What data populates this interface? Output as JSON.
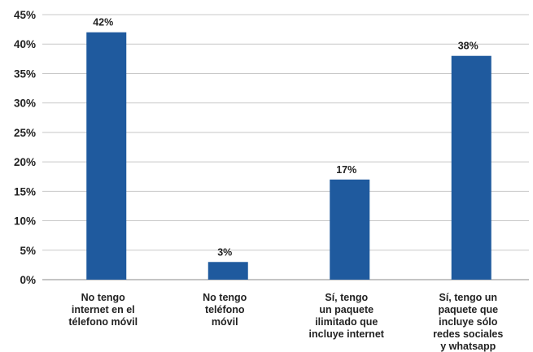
{
  "chart_data": {
    "type": "bar",
    "categories": [
      [
        "No tengo",
        "internet en el",
        "télefono móvil"
      ],
      [
        "No tengo",
        "teléfono",
        "móvil"
      ],
      [
        "Sí, tengo",
        "un paquete",
        "ilimitado que",
        "incluye internet"
      ],
      [
        "Sí, tengo un",
        "paquete que",
        "incluye sólo",
        "redes sociales",
        "y whatsapp"
      ]
    ],
    "values": [
      42,
      3,
      17,
      38
    ],
    "data_labels": [
      "42%",
      "3%",
      "17%",
      "38%"
    ],
    "y_ticks": [
      "0%",
      "5%",
      "10%",
      "15%",
      "20%",
      "25%",
      "30%",
      "35%",
      "40%",
      "45%"
    ],
    "ylim": [
      0,
      45
    ],
    "grid": true,
    "bar_color": "#1f5a9e",
    "grid_color": "#c8c8c8",
    "axis_color": "#888888",
    "title": "",
    "xlabel": "",
    "ylabel": ""
  }
}
